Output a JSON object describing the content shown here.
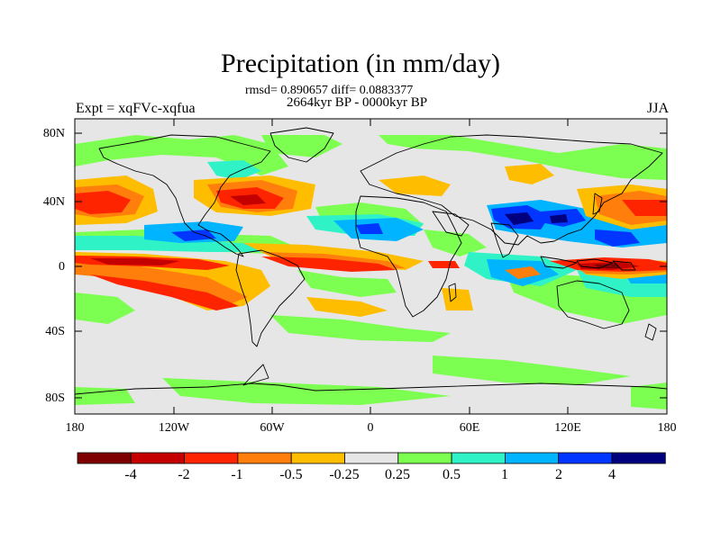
{
  "title": "Precipitation (in mm/day)",
  "stats_line": "rmsd= 0.890657 diff= 0.0883377",
  "period": "2664kyr BP - 0000kyr BP",
  "experiment": "Expt = xqFVc-xqfua",
  "season": "JJA",
  "lat_labels": [
    "80N",
    "40N",
    "0",
    "40S",
    "80S"
  ],
  "lon_labels": [
    "180",
    "120W",
    "60W",
    "0",
    "60E",
    "120E",
    "180"
  ],
  "colorbar": {
    "colors": [
      "#7f0000",
      "#c40000",
      "#ff2400",
      "#ff7e0c",
      "#ffbd00",
      "#e6e6e6",
      "#7dff52",
      "#2ff2c6",
      "#00b4ff",
      "#0036ff",
      "#00007f"
    ],
    "labels": [
      "-4",
      "-2",
      "-1",
      "-0.5",
      "-0.25",
      "0.25",
      "0.5",
      "1",
      "2",
      "4"
    ]
  },
  "colors": {
    "land_outline": "#000000",
    "background": "#e6e6e6"
  }
}
